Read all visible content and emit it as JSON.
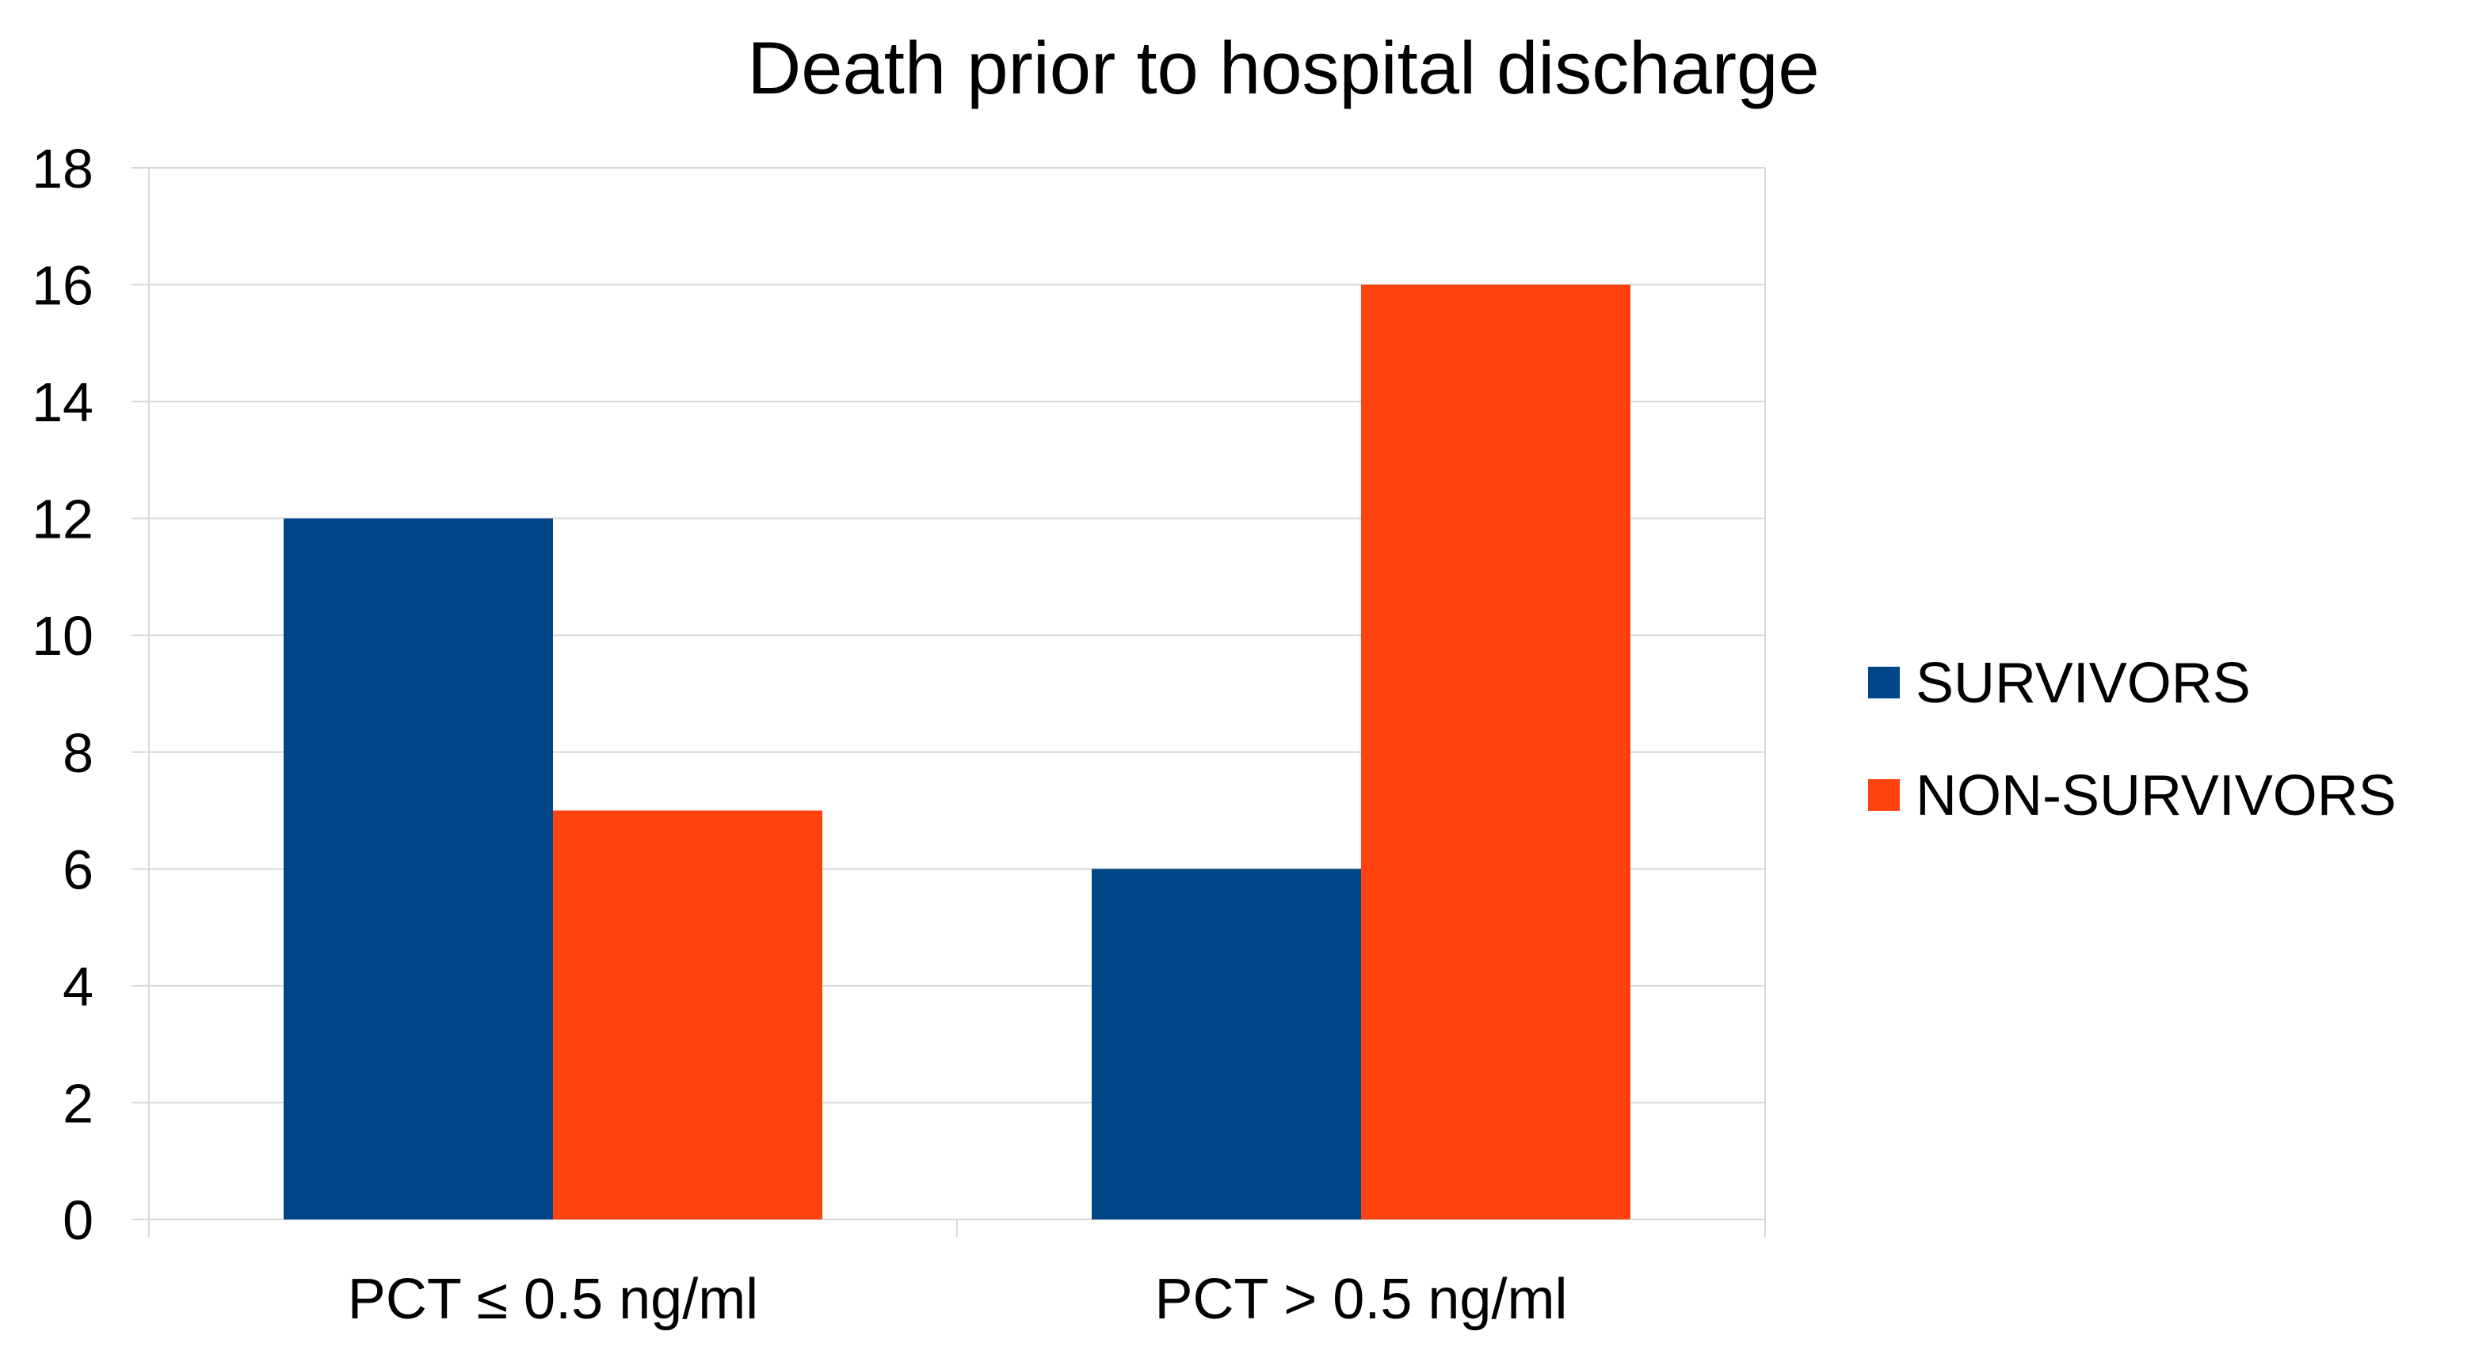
{
  "chart_data": {
    "type": "bar",
    "title": "Death prior to hospital discharge",
    "categories": [
      "PCT ≤ 0.5 ng/ml",
      "PCT > 0.5 ng/ml"
    ],
    "series": [
      {
        "name": "SURVIVORS",
        "values": [
          12,
          6
        ],
        "color": "#004586"
      },
      {
        "name": "NON-SURVIVORS",
        "values": [
          7,
          16
        ],
        "color": "#ff420e"
      }
    ],
    "ylim": [
      0,
      18
    ],
    "yticks": [
      0,
      2,
      4,
      6,
      8,
      10,
      12,
      14,
      16,
      18
    ],
    "grid": true,
    "legend": "right",
    "xlabel": "",
    "ylabel": ""
  }
}
